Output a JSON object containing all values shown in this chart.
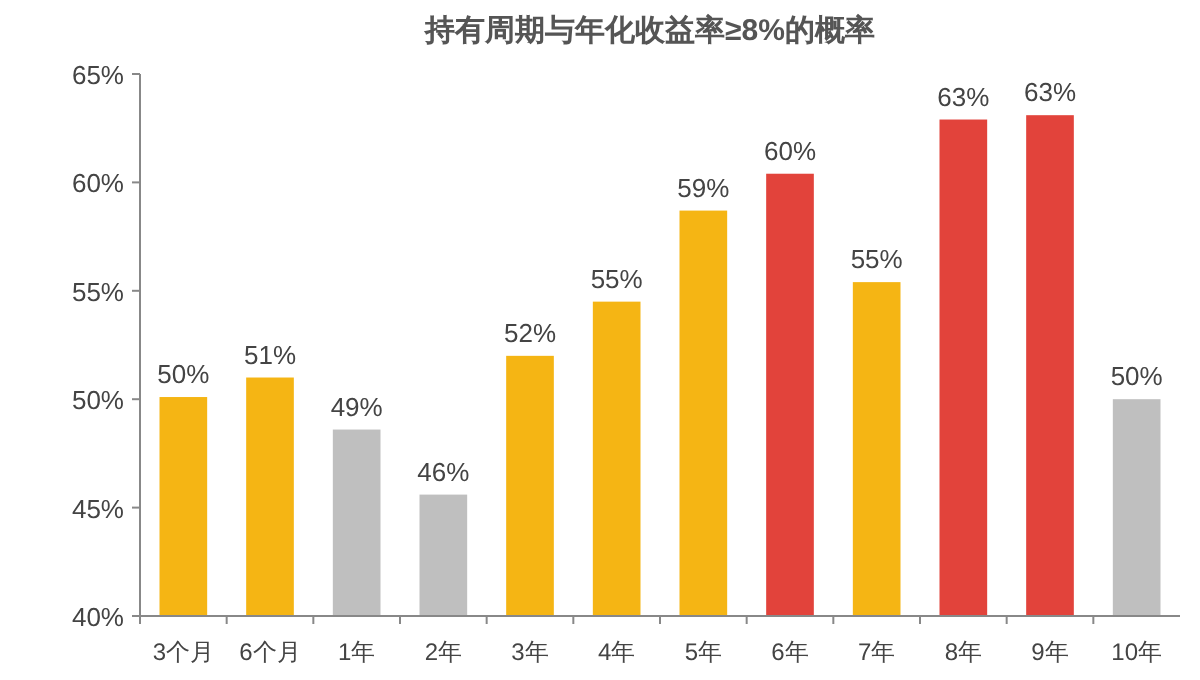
{
  "chart_data": {
    "type": "bar",
    "title": "持有周期与年化收益率≥8%的概率",
    "categories": [
      "3个月",
      "6个月",
      "1年",
      "2年",
      "3年",
      "4年",
      "5年",
      "6年",
      "7年",
      "8年",
      "9年",
      "10年"
    ],
    "values": [
      50.1,
      51.0,
      48.6,
      45.6,
      52.0,
      54.5,
      58.7,
      60.4,
      55.4,
      62.9,
      63.1,
      50.0
    ],
    "value_labels": [
      "50%",
      "51%",
      "49%",
      "46%",
      "52%",
      "55%",
      "59%",
      "60%",
      "55%",
      "63%",
      "63%",
      "50%"
    ],
    "colors": [
      "#f5b514",
      "#f5b514",
      "#bfbfbf",
      "#bfbfbf",
      "#f5b514",
      "#f5b514",
      "#f5b514",
      "#e2433b",
      "#f5b514",
      "#e2433b",
      "#e2433b",
      "#bfbfbf"
    ],
    "ylim": [
      40,
      65
    ],
    "yticks": [
      {
        "value": 40,
        "label": "40%"
      },
      {
        "value": 45,
        "label": "45%"
      },
      {
        "value": 50,
        "label": "50%"
      },
      {
        "value": 55,
        "label": "55%"
      },
      {
        "value": 60,
        "label": "60%"
      },
      {
        "value": 65,
        "label": "65%"
      }
    ],
    "grid": false
  }
}
